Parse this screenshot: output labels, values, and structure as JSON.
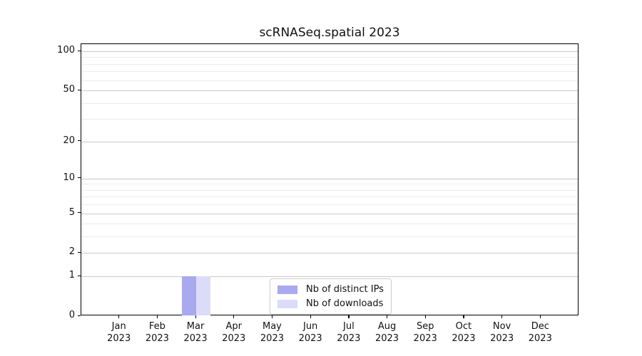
{
  "chart_data": {
    "type": "bar",
    "title": "scRNASeq.spatial 2023",
    "year": "2023",
    "categories": [
      "Jan",
      "Feb",
      "Mar",
      "Apr",
      "May",
      "Jun",
      "Jul",
      "Aug",
      "Sep",
      "Oct",
      "Nov",
      "Dec"
    ],
    "series": [
      {
        "name": "Nb of distinct IPs",
        "color": "#a9a9f0",
        "values": [
          0,
          0,
          1,
          0,
          0,
          0,
          0,
          0,
          0,
          0,
          0,
          0
        ]
      },
      {
        "name": "Nb of downloads",
        "color": "#dcdcf8",
        "values": [
          0,
          0,
          1,
          0,
          0,
          0,
          0,
          0,
          0,
          0,
          0,
          0
        ]
      }
    ],
    "y_axis": {
      "scale": "log10(value+1)",
      "major_ticks": [
        0,
        1,
        2,
        5,
        10,
        20,
        50,
        100
      ],
      "minor_gridlines": [
        3,
        4,
        6,
        7,
        8,
        9,
        30,
        40,
        60,
        70,
        80,
        90
      ],
      "ylim": [
        0,
        115
      ]
    },
    "x_axis": {
      "tick_label_format": "month newline year"
    },
    "legend": {
      "position": "lower center",
      "entries": [
        "Nb of distinct IPs",
        "Nb of downloads"
      ]
    },
    "grid": "horizontal",
    "colors": {
      "bar_distinct_ips": "#a9a9f0",
      "bar_downloads": "#dcdcf8",
      "major_gridline": "#c9c9c9",
      "minor_gridline": "#ececec",
      "axis": "#000000",
      "legend_border": "#cccccc",
      "text": "#111111"
    }
  }
}
